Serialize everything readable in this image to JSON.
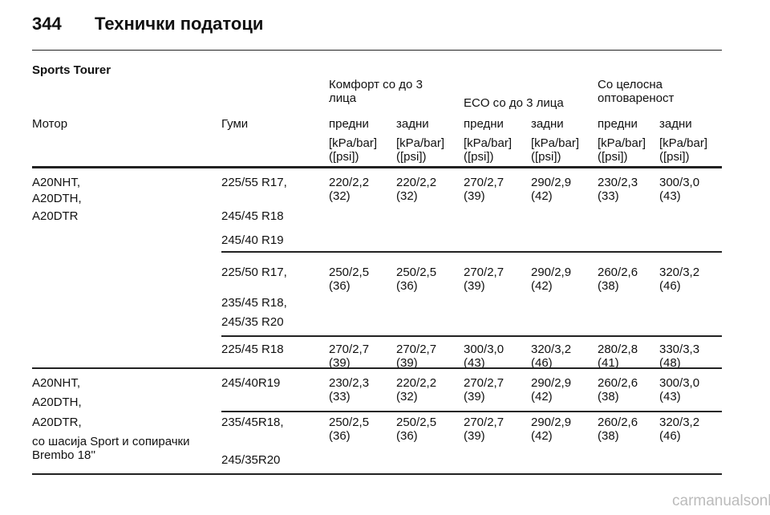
{
  "header": {
    "page": "344",
    "title": "Технички податоци"
  },
  "section": "Sports Tourer",
  "table": {
    "group_headers": [
      "Комфорт со до 3 лица",
      "ECO со до 3 лица",
      "Со целосна оптовареност"
    ],
    "columns": [
      "Мотор",
      "Гуми",
      "предни",
      "задни",
      "предни",
      "задни",
      "предни",
      "задни"
    ],
    "units": [
      "[kPa/bar] ([psi])",
      "[kPa/bar] ([psi])",
      "[kPa/bar] ([psi])",
      "[kPa/bar] ([psi])",
      "[kPa/bar] ([psi])",
      "[kPa/bar] ([psi])"
    ],
    "groups": [
      {
        "engine": [
          "A20NHT,",
          "A20DTH,",
          "A20DTR"
        ],
        "rows": [
          {
            "tires": [
              "225/55 R17,",
              "245/45 R18",
              "245/40 R19"
            ],
            "values": [
              [
                "220/2,2",
                "(32)"
              ],
              [
                "220/2,2",
                "(32)"
              ],
              [
                "270/2,7",
                "(39)"
              ],
              [
                "290/2,9",
                "(42)"
              ],
              [
                "230/2,3",
                "(33)"
              ],
              [
                "300/3,0",
                "(43)"
              ]
            ]
          },
          {
            "tires": [
              "225/50 R17,",
              "235/45 R18,",
              "245/35 R20"
            ],
            "values": [
              [
                "250/2,5",
                "(36)"
              ],
              [
                "250/2,5",
                "(36)"
              ],
              [
                "270/2,7",
                "(39)"
              ],
              [
                "290/2,9",
                "(42)"
              ],
              [
                "260/2,6",
                "(38)"
              ],
              [
                "320/3,2",
                "(46)"
              ]
            ]
          },
          {
            "tires": [
              "225/45 R18"
            ],
            "values": [
              [
                "270/2,7",
                "(39)"
              ],
              [
                "270/2,7",
                "(39)"
              ],
              [
                "300/3,0",
                "(43)"
              ],
              [
                "320/3,2",
                "(46)"
              ],
              [
                "280/2,8",
                "(41)"
              ],
              [
                "330/3,3",
                "(48)"
              ]
            ]
          }
        ]
      },
      {
        "engine": [
          "A20NHT,",
          "A20DTH,",
          "A20DTR,",
          "со шасија Sport и сопирачки Brembo 18''"
        ],
        "rows": [
          {
            "tires": [
              "245/40R19"
            ],
            "values": [
              [
                "230/2,3",
                "(33)"
              ],
              [
                "220/2,2",
                "(32)"
              ],
              [
                "270/2,7",
                "(39)"
              ],
              [
                "290/2,9",
                "(42)"
              ],
              [
                "260/2,6",
                "(38)"
              ],
              [
                "300/3,0",
                "(43)"
              ]
            ]
          },
          {
            "tires": [
              "235/45R18,",
              "245/35R20"
            ],
            "values": [
              [
                "250/2,5",
                "(36)"
              ],
              [
                "250/2,5",
                "(36)"
              ],
              [
                "270/2,7",
                "(39)"
              ],
              [
                "290/2,9",
                "(42)"
              ],
              [
                "260/2,6",
                "(38)"
              ],
              [
                "320/3,2",
                "(46)"
              ]
            ]
          }
        ]
      }
    ]
  },
  "watermark": "carmanualsonline.info"
}
